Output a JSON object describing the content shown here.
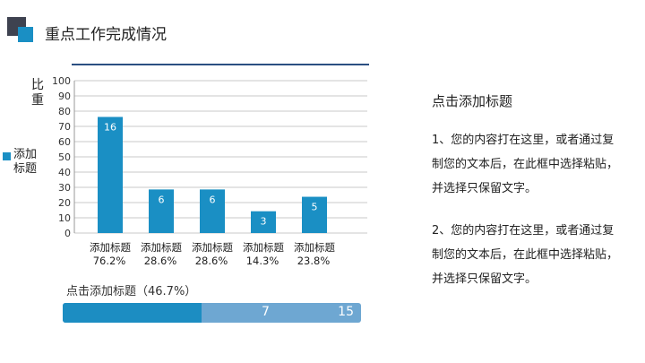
{
  "header": {
    "title": "重点工作完成情况"
  },
  "chart_data": {
    "type": "bar",
    "ylabel": "比\n重",
    "ylim": [
      0,
      100
    ],
    "yticks": [
      0,
      10,
      20,
      30,
      40,
      50,
      60,
      70,
      80,
      90,
      100
    ],
    "grid": true,
    "legend_position": "left",
    "categories": [
      "添加标题",
      "添加标题",
      "添加标题",
      "添加标题",
      "添加标题"
    ],
    "percent_labels": [
      "76.2%",
      "28.6%",
      "28.6%",
      "14.3%",
      "23.8%"
    ],
    "series": [
      {
        "name": "添加标题",
        "values": [
          76.2,
          28.6,
          28.6,
          14.3,
          23.8
        ],
        "data_labels": [
          "16",
          "6",
          "6",
          "3",
          "5"
        ]
      }
    ],
    "colors": {
      "bar": "#1a8fc4",
      "grid": "#c8c8c8",
      "axis": "#999999"
    }
  },
  "legend": {
    "label": "添加标题"
  },
  "progress": {
    "title": "点击添加标题（46.7%）",
    "value": 7,
    "total": 15,
    "percent": 46.7,
    "fill_color": "#1c8dc2",
    "track_color": "#6ea7d2"
  },
  "right_panel": {
    "title": "点击添加标题",
    "paragraph1": "1、您的内容打在这里，或者通过复制您的文本后，在此框中选择粘贴，并选择只保留文字。",
    "paragraph2": "2、您的内容打在这里，或者通过复制您的文本后，在此框中选择粘贴，并选择只保留文字。"
  }
}
